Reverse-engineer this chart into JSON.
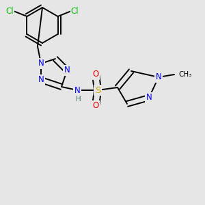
{
  "bg_color": "#e6e6e6",
  "atom_colors": {
    "C": "#000000",
    "N": "#0000ee",
    "S": "#ccaa00",
    "O": "#ee0000",
    "Cl": "#00bb00",
    "H": "#407070"
  },
  "bond_color": "#000000",
  "font_size": 8.5,
  "figsize": [
    3.0,
    3.0
  ],
  "dpi": 100
}
